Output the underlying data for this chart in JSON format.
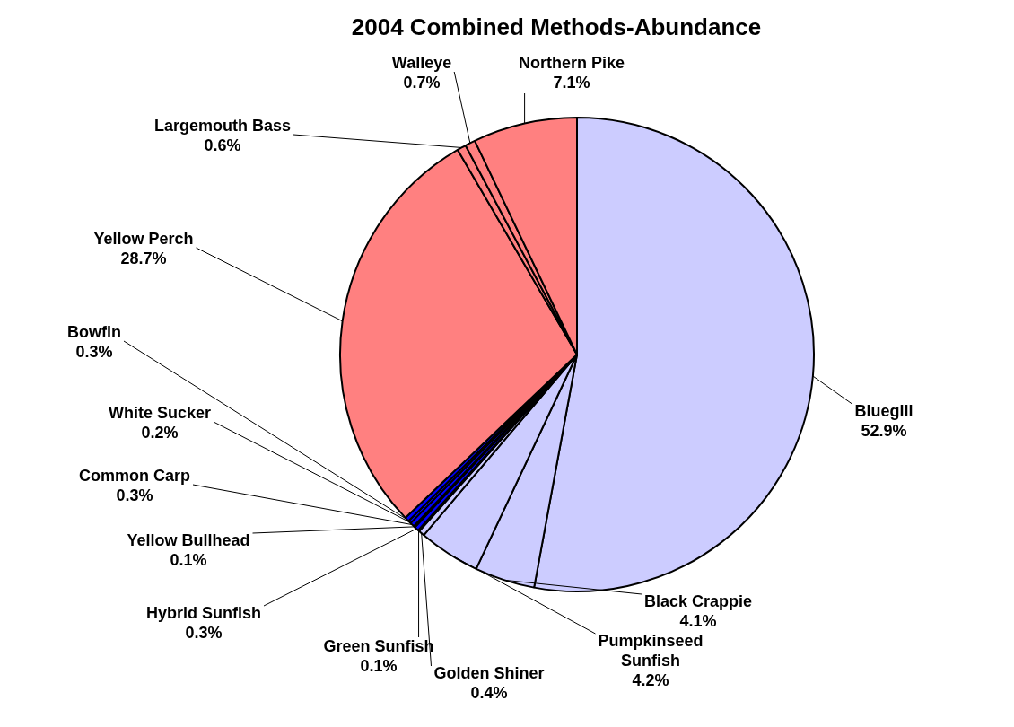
{
  "chart_data": {
    "type": "pie",
    "title": "2004 Combined Methods-Abundance",
    "categories": [
      "Bluegill",
      "Black Crappie",
      "Pumpkinseed Sunfish",
      "Golden Shiner",
      "Green Sunfish",
      "Hybrid Sunfish",
      "Yellow Bullhead",
      "Common Carp",
      "White Sucker",
      "Bowfin",
      "Yellow Perch",
      "Largemouth Bass",
      "Walleye",
      "Northern Pike"
    ],
    "values": [
      52.9,
      4.1,
      4.2,
      0.4,
      0.1,
      0.3,
      0.1,
      0.3,
      0.2,
      0.3,
      28.7,
      0.6,
      0.7,
      7.1
    ],
    "value_labels": [
      "52.9%",
      "4.1%",
      "4.2%",
      "0.4%",
      "0.1%",
      "0.3%",
      "0.1%",
      "0.3%",
      "0.2%",
      "0.3%",
      "28.7%",
      "0.6%",
      "0.7%",
      "7.1%"
    ],
    "colors": [
      "#ccccff",
      "#ccccff",
      "#ccccff",
      "#ccccff",
      "#ccccff",
      "#0000ff",
      "#0000ff",
      "#0000ff",
      "#0000ff",
      "#0000ff",
      "#ff8080",
      "#ff8080",
      "#ff8080",
      "#ff8080"
    ],
    "legend": false
  }
}
